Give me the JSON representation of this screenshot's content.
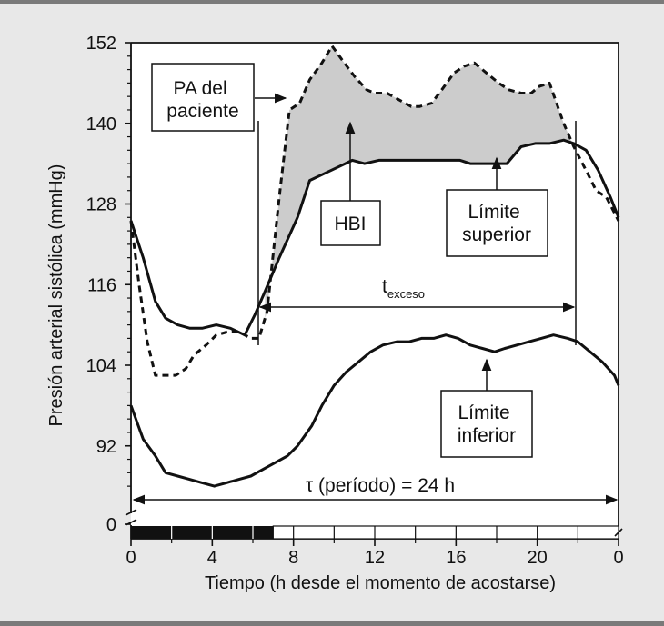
{
  "chart_data": {
    "type": "line",
    "xlabel": "Tiempo (h desde el momento de acostarse)",
    "ylabel": "Presión arterial sistólica (mmHg)",
    "xlim": [
      0,
      24
    ],
    "ylim": [
      86,
      152
    ],
    "x_tick_labels": [
      "0",
      "4",
      "8",
      "12",
      "16",
      "20",
      "0"
    ],
    "y_tick_labels": [
      "0",
      "92",
      "104",
      "116",
      "128",
      "140",
      "152"
    ],
    "axis_break": true,
    "sleep_bar": {
      "dark_hours": [
        0,
        7
      ],
      "light_hours": [
        7,
        24
      ]
    },
    "series": [
      {
        "name": "PA del paciente",
        "style": "dashed",
        "x": [
          0,
          0.4,
          0.8,
          1.2,
          1.6,
          2.2,
          2.7,
          3.1,
          3.7,
          4.2,
          4.8,
          5.3,
          5.9,
          6.3,
          6.7,
          7.3,
          7.8,
          8.3,
          8.8,
          9.4,
          9.9,
          10.5,
          11.0,
          11.6,
          12.0,
          12.6,
          13.2,
          13.8,
          14.2,
          14.8,
          15.3,
          15.9,
          16.4,
          16.9,
          17.5,
          18.1,
          18.6,
          19.2,
          19.7,
          20.1,
          20.6,
          21.3,
          21.8,
          22.4,
          22.9,
          23.4,
          24.0
        ],
        "y": [
          125.5,
          116,
          107.5,
          102.5,
          102.5,
          102.5,
          103.5,
          105.5,
          107,
          108.5,
          109,
          109,
          108,
          108,
          112,
          129,
          142,
          143,
          146.5,
          149,
          151.5,
          149,
          147,
          145,
          144.5,
          144.5,
          143.5,
          142.5,
          142.5,
          143,
          145,
          147.5,
          148.5,
          149,
          147.5,
          146,
          145,
          144.5,
          144.5,
          145.5,
          146,
          140,
          136.5,
          133,
          130,
          129,
          125.5
        ]
      },
      {
        "name": "Límite superior",
        "style": "solid",
        "x": [
          0,
          0.6,
          1.2,
          1.7,
          2.3,
          2.9,
          3.5,
          4.2,
          4.9,
          5.6,
          6.1,
          6.6,
          7.3,
          8.2,
          8.8,
          9.5,
          10.2,
          10.9,
          11.5,
          12.2,
          12.9,
          13.6,
          14.3,
          15.1,
          15.6,
          16.2,
          16.7,
          17.3,
          17.9,
          18.5,
          19.2,
          19.9,
          20.6,
          21.3,
          21.8,
          22.4,
          23.0,
          23.6,
          24.0
        ],
        "y": [
          125.5,
          120,
          113.5,
          111,
          110,
          109.5,
          109.5,
          110,
          109.5,
          108.5,
          111.5,
          115,
          120,
          126,
          131.5,
          132.5,
          133.5,
          134.5,
          134,
          134.5,
          134.5,
          134.5,
          134.5,
          134.5,
          134.5,
          134.5,
          134,
          134,
          134,
          134,
          136.5,
          137,
          137,
          137.5,
          137,
          136,
          133,
          129,
          126
        ]
      },
      {
        "name": "Límite inferior",
        "style": "solid",
        "x": [
          0,
          0.6,
          1.2,
          1.7,
          2.3,
          2.9,
          3.5,
          4.1,
          4.7,
          5.3,
          5.9,
          6.5,
          7.1,
          7.7,
          8.2,
          8.9,
          9.4,
          10.0,
          10.6,
          11.2,
          11.8,
          12.4,
          13.1,
          13.7,
          14.3,
          14.9,
          15.5,
          16.1,
          16.7,
          17.3,
          17.9,
          18.4,
          19.0,
          19.6,
          20.2,
          20.8,
          21.5,
          22.0,
          22.6,
          23.2,
          23.8,
          24.0
        ],
        "y": [
          98,
          93,
          90.5,
          88,
          87.5,
          87,
          86.5,
          86,
          86.5,
          87,
          87.5,
          88.5,
          89.5,
          90.5,
          92,
          95,
          98,
          101,
          103,
          104.5,
          106,
          107,
          107.5,
          107.5,
          108,
          108,
          108.5,
          108,
          107,
          106.5,
          106,
          106.5,
          107,
          107.5,
          108,
          108.5,
          108,
          107.5,
          106,
          104.5,
          102.5,
          101
        ]
      }
    ],
    "shaded_region": {
      "between": [
        "PA del paciente",
        "Límite superior"
      ],
      "x_range": [
        6.6,
        21.8
      ],
      "color": "#cccccc"
    },
    "annotations": {
      "pa_label": "PA del paciente",
      "hbi_label": "HBI",
      "upper_label": "Límite superior",
      "lower_label": "Límite inferior",
      "excess_label": "t",
      "excess_subscript": "exceso",
      "period_label": "τ (período) = 24 h"
    },
    "colors": {
      "background": "#e8e8e8",
      "plot_background": "#ffffff",
      "shading": "#cccccc",
      "ink": "#111111"
    }
  }
}
